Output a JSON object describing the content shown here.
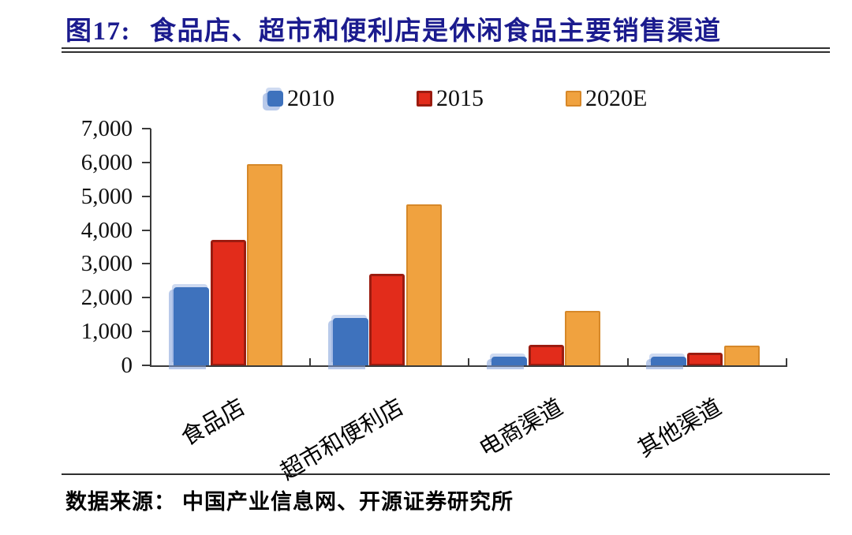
{
  "header": {
    "figure_label": "图17:",
    "title": "食品店、超市和便利店是休闲食品主要销售渠道",
    "title_color": "#1b1b8e"
  },
  "footer": {
    "source_label": "数据来源：",
    "source_text": "中国产业信息网、开源证券研究所"
  },
  "chart_data": {
    "type": "bar",
    "title": "食品店、超市和便利店是休闲食品主要销售渠道",
    "categories": [
      "食品店",
      "超市和便利店",
      "电商渠道",
      "其他渠道"
    ],
    "series": [
      {
        "name": "2010",
        "color": "#3e72bd",
        "values": [
          2300,
          1400,
          250,
          250
        ]
      },
      {
        "name": "2015",
        "color": "#e22c1b",
        "values": [
          3700,
          2700,
          600,
          370
        ]
      },
      {
        "name": "2020E",
        "color": "#f0a23f",
        "values": [
          5950,
          4750,
          1620,
          580
        ]
      }
    ],
    "ylim": [
      0,
      7000
    ],
    "ytick_step": 1000,
    "ytick_labels": [
      "0",
      "1,000",
      "2,000",
      "3,000",
      "4,000",
      "5,000",
      "6,000",
      "7,000"
    ],
    "legend_position": "top-center",
    "grid": false,
    "axis_color": "#3a3a3a"
  }
}
